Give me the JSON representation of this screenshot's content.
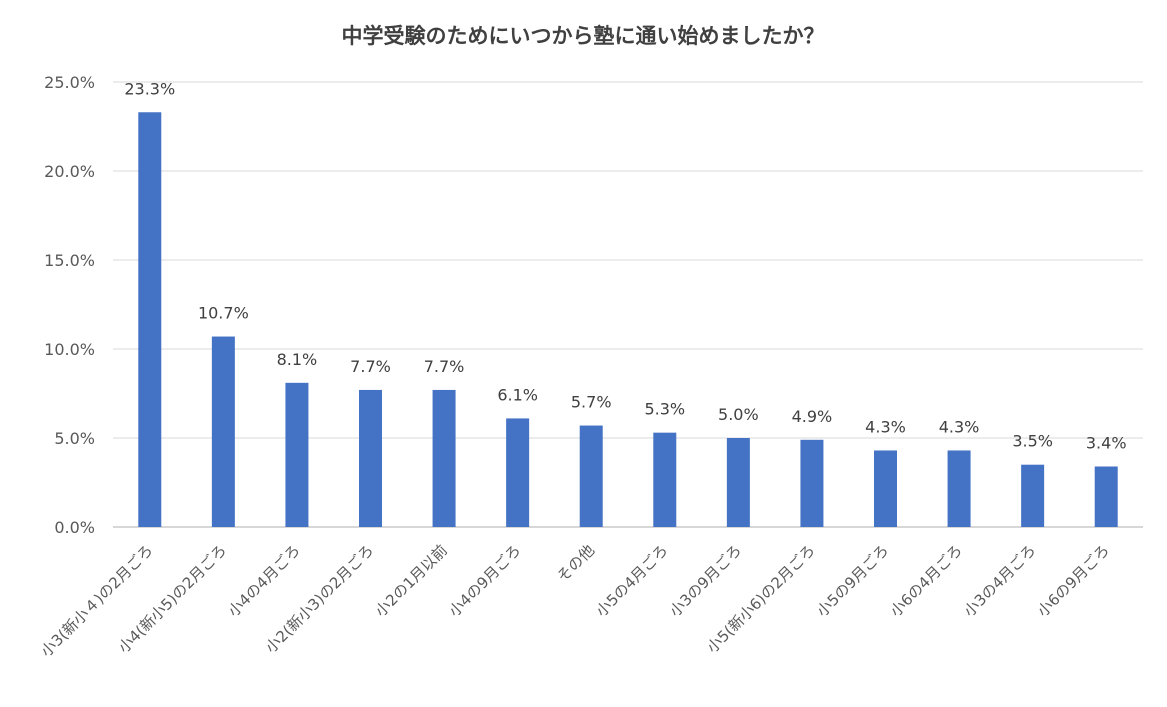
{
  "chart_data": {
    "type": "bar",
    "title": "中学受験のためにいつから塾に通い始めましたか？",
    "categories": [
      "小3(新小４)の2月ごろ",
      "小4(新小5)の2月ごろ",
      "小4の4月ごろ",
      "小2(新小3)の2月ごろ",
      "小2の1月以前",
      "小4の9月ごろ",
      "その他",
      "小5の4月ごろ",
      "小3の9月ごろ",
      "小5(新小6)の2月ごろ",
      "小5の9月ごろ",
      "小6の4月ごろ",
      "小3の4月ごろ",
      "小6の9月ごろ"
    ],
    "values": [
      23.3,
      10.7,
      8.1,
      7.7,
      7.7,
      6.1,
      5.7,
      5.3,
      5.0,
      4.9,
      4.3,
      4.3,
      3.5,
      3.4
    ],
    "data_labels": [
      "23.3%",
      "10.7%",
      "8.1%",
      "7.7%",
      "7.7%",
      "6.1%",
      "5.7%",
      "5.3%",
      "5.0%",
      "4.9%",
      "4.3%",
      "4.3%",
      "3.5%",
      "3.4%"
    ],
    "ylim": [
      0,
      25
    ],
    "yticks": [
      0,
      5,
      10,
      15,
      20,
      25
    ],
    "ytick_labels": [
      "0.0%",
      "5.0%",
      "10.0%",
      "15.0%",
      "20.0%",
      "25.0%"
    ],
    "xlabel": "",
    "ylabel": "",
    "grid": true,
    "legend": "none",
    "bar_color": "#4472c4"
  }
}
